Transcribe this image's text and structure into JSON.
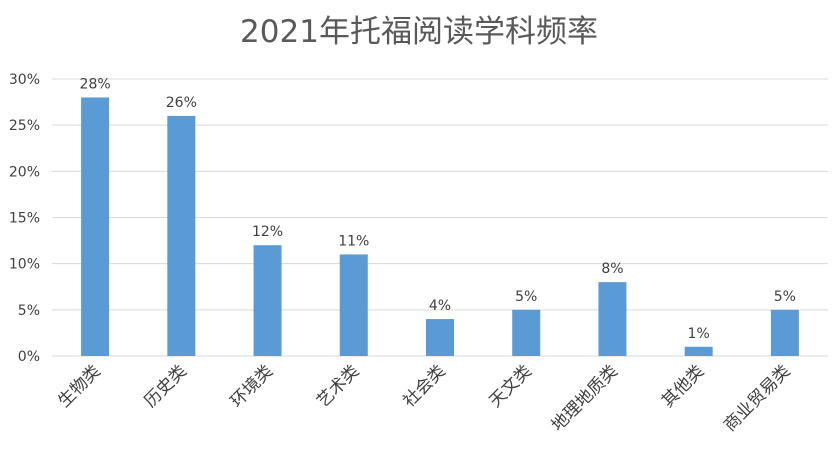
{
  "chart_data": {
    "type": "bar",
    "title": "2021年托福阅读学科频率",
    "xlabel": "",
    "ylabel": "",
    "categories": [
      "生物类",
      "历史类",
      "环境类",
      "艺术类",
      "社会类",
      "天文类",
      "地理地质类",
      "其他类",
      "商业贸易类"
    ],
    "values": [
      28,
      26,
      12,
      11,
      4,
      5,
      8,
      1,
      5
    ],
    "data_labels": [
      "28%",
      "26%",
      "12%",
      "11%",
      "4%",
      "5%",
      "8%",
      "1%",
      "5%"
    ],
    "ylim": [
      0,
      30
    ],
    "yticks": [
      "0%",
      "5%",
      "10%",
      "15%",
      "20%",
      "25%",
      "30%"
    ],
    "grid": true,
    "legend": "none",
    "bar_color": "#5b9bd5",
    "grid_color": "#d9d9d9",
    "text_color": "#404040"
  }
}
